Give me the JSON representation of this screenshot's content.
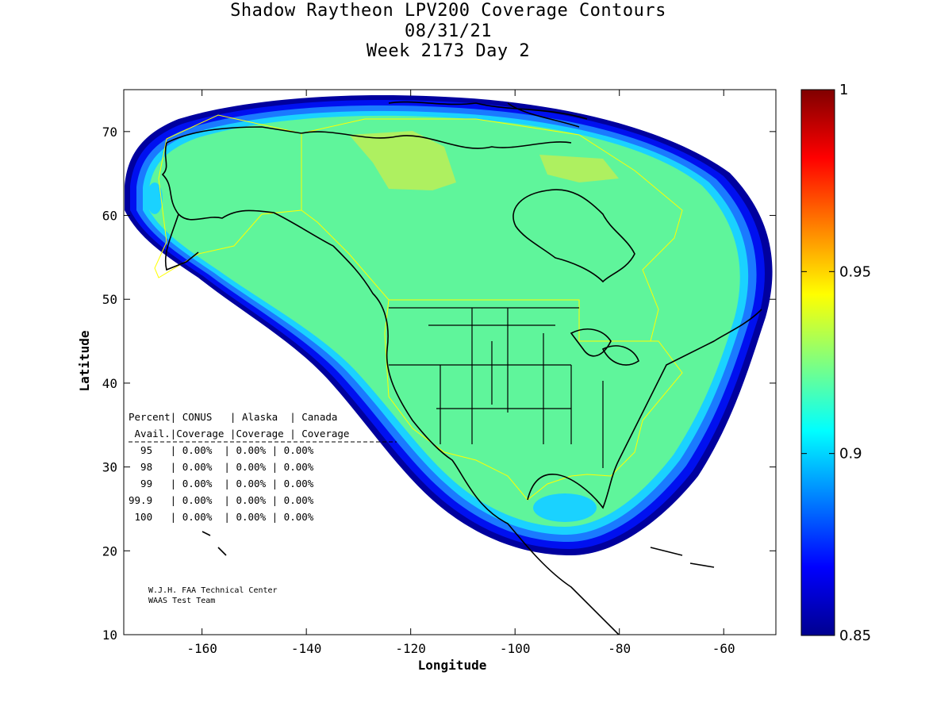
{
  "title": {
    "line1": "Shadow Raytheon LPV200 Coverage Contours",
    "line2": "08/31/21",
    "line3": "Week 2173 Day 2"
  },
  "axes": {
    "xlabel": "Longitude",
    "ylabel": "Latitude",
    "xlim": [
      -175,
      -50
    ],
    "ylim": [
      10,
      75
    ],
    "xticks": [
      -160,
      -140,
      -120,
      -100,
      -80,
      -60
    ],
    "yticks": [
      10,
      20,
      30,
      40,
      50,
      60,
      70
    ]
  },
  "colorbar": {
    "range": [
      0.85,
      1
    ],
    "tick_labels": [
      "1",
      "0.95",
      "0.9",
      "0.85"
    ]
  },
  "colors": {
    "coverage_fill": "#5ff59b",
    "boundary": "#ffff00",
    "coastline": "#000000"
  },
  "table": {
    "header1": "Percent| CONUS   | Alaska  | Canada",
    "header2": " Avail.|Coverage |Coverage | Coverage",
    "rows": [
      "  95   | 0.00%  | 0.00% | 0.00%",
      "  98   | 0.00%  | 0.00% | 0.00%",
      "  99   | 0.00%  | 0.00% | 0.00%",
      "99.9   | 0.00%  | 0.00% | 0.00%",
      " 100   | 0.00%  | 0.00% | 0.00%"
    ]
  },
  "credit": {
    "line1": "W.J.H. FAA Technical Center",
    "line2": "WAAS Test Team"
  },
  "chart_data": {
    "type": "heatmap",
    "title": "Shadow Raytheon LPV200 Coverage Contours",
    "xlabel": "Longitude",
    "ylabel": "Latitude",
    "xlim": [
      -175,
      -50
    ],
    "ylim": [
      10,
      75
    ],
    "colorbar_range": [
      0.85,
      1
    ],
    "coverage_region_outline": [
      [
        -175,
        64
      ],
      [
        -172,
        68
      ],
      [
        -165,
        70.5
      ],
      [
        -150,
        72.5
      ],
      [
        -130,
        73.5
      ],
      [
        -110,
        74
      ],
      [
        -90,
        73.5
      ],
      [
        -75,
        71.5
      ],
      [
        -62,
        68
      ],
      [
        -55,
        63
      ],
      [
        -51,
        57
      ],
      [
        -50,
        51
      ],
      [
        -52,
        45
      ],
      [
        -57,
        40
      ],
      [
        -65,
        33
      ],
      [
        -73,
        27
      ],
      [
        -80,
        22.5
      ],
      [
        -88,
        20
      ],
      [
        -98,
        21
      ],
      [
        -108,
        25
      ],
      [
        -118,
        30
      ],
      [
        -128,
        39
      ],
      [
        -140,
        47
      ],
      [
        -155,
        53
      ],
      [
        -168,
        57
      ],
      [
        -175,
        60
      ]
    ],
    "interior_value_band": "0.91-0.92",
    "edge_gradient_values": [
      0.9,
      0.88,
      0.86,
      0.85
    ]
  }
}
